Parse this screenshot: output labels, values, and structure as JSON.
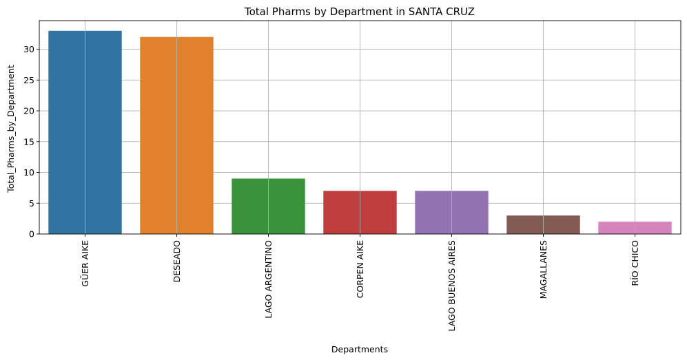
{
  "chart_data": {
    "type": "bar",
    "title": "Total Pharms by Department in SANTA CRUZ",
    "xlabel": "Departments",
    "ylabel": "Total_Pharms_by_Department",
    "categories": [
      "GÜER AIKE",
      "DESEADO",
      "LAGO ARGENTINO",
      "CORPEN AIKE",
      "LAGO BUENOS AIRES",
      "MAGALLANES",
      "RÍO CHICO"
    ],
    "values": [
      33,
      32,
      9,
      7,
      7,
      3,
      2
    ],
    "colors": [
      "#3274a1",
      "#e1812c",
      "#3a923a",
      "#c03d3e",
      "#9372b2",
      "#845b53",
      "#d684bd"
    ],
    "ylim": [
      0,
      34.65
    ],
    "yticks": [
      0,
      5,
      10,
      15,
      20,
      25,
      30
    ],
    "grid": true,
    "legend": "none"
  }
}
